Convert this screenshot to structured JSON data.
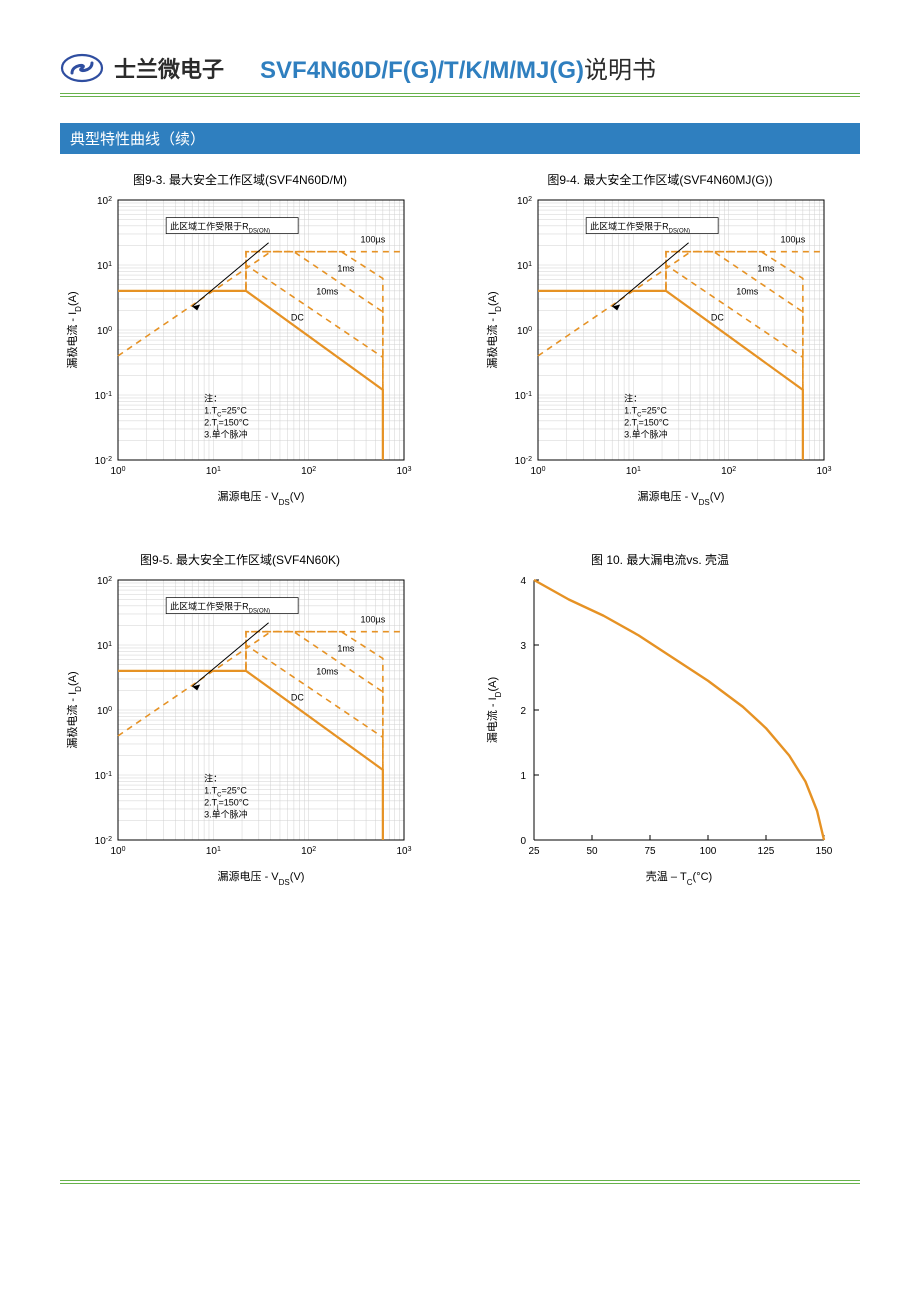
{
  "header": {
    "brand": "士兰微电子",
    "part_number": "SVF4N60D/F(G)/T/K/M/MJ(G)",
    "part_suffix": "说明书",
    "logo_stroke": "#2f4ea0",
    "logo_fill": "#ffffff"
  },
  "section_title": "典型特性曲线（续）",
  "colors": {
    "axis": "#000000",
    "grid": "#d0d0d0",
    "curve": "#e69224",
    "background": "#ffffff",
    "text": "#000000",
    "header_blue": "#2f7fbf",
    "rule_green": "#67b24b"
  },
  "soa_common": {
    "type": "line-loglog",
    "xlabel": "漏源电压 - V",
    "xlabel_sub": "DS",
    "xlabel_unit": "(V)",
    "ylabel": "漏极电流 - I",
    "ylabel_sub": "D",
    "ylabel_unit": "(A)",
    "xlim": [
      1,
      1000
    ],
    "ylim": [
      0.01,
      100
    ],
    "xtick_exp": [
      0,
      1,
      2,
      3
    ],
    "ytick_exp": [
      -2,
      -1,
      0,
      1,
      2
    ],
    "note_lines": [
      "注：",
      "1.T",
      "2.T",
      "3.单个脉冲"
    ],
    "note_sub1": "C",
    "note_val1": "=25°C",
    "note_sub2": "j",
    "note_val2": "=150°C",
    "rdson_label_pre": "此区域工作受限于R",
    "rdson_label_sub": "DS(ON)",
    "pulse_labels": [
      "100µs",
      "1ms",
      "10ms",
      "DC"
    ],
    "line_width_solid": 2.2,
    "line_width_dash": 1.6,
    "dash": "6,5",
    "rdson_line": [
      [
        1,
        0.4
      ],
      [
        40,
        16
      ],
      [
        1000,
        16
      ]
    ],
    "dc": [
      [
        1,
        4
      ],
      [
        22,
        4
      ],
      [
        600,
        0.12
      ],
      [
        600,
        0.01
      ]
    ],
    "p10ms": [
      [
        1.6,
        4
      ],
      [
        22,
        4
      ],
      [
        22,
        10
      ],
      [
        600,
        0.38
      ],
      [
        600,
        0.01
      ]
    ],
    "p1ms": [
      [
        4.5,
        4
      ],
      [
        22,
        4
      ],
      [
        22,
        16
      ],
      [
        70,
        16
      ],
      [
        600,
        1.9
      ],
      [
        600,
        0.01
      ]
    ],
    "p100us": [
      [
        14,
        4
      ],
      [
        22,
        4
      ],
      [
        22,
        16
      ],
      [
        220,
        16
      ],
      [
        600,
        6.2
      ],
      [
        600,
        0.01
      ]
    ],
    "arrow_from": [
      38,
      22
    ],
    "arrow_to": [
      6,
      2.3
    ]
  },
  "soa_charts": [
    {
      "title": "图9-3. 最大安全工作区域(SVF4N60D/M)"
    },
    {
      "title": "图9-4. 最大安全工作区域(SVF4N60MJ(G))"
    },
    {
      "title": "图9-5. 最大安全工作区域(SVF4N60K)"
    }
  ],
  "id_tc_chart": {
    "type": "line",
    "title": "图 10. 最大漏电流vs. 壳温",
    "xlabel": "壳温 – T",
    "xlabel_sub": "C",
    "xlabel_unit": "(°C)",
    "ylabel": "漏电流 - I",
    "ylabel_sub": "D",
    "ylabel_unit": "(A)",
    "xlim": [
      25,
      150
    ],
    "ylim": [
      0,
      4
    ],
    "xticks": [
      25,
      50,
      75,
      100,
      125,
      150
    ],
    "yticks": [
      0,
      1,
      2,
      3,
      4
    ],
    "data": [
      [
        25,
        4.0
      ],
      [
        40,
        3.7
      ],
      [
        55,
        3.45
      ],
      [
        70,
        3.15
      ],
      [
        85,
        2.8
      ],
      [
        100,
        2.45
      ],
      [
        115,
        2.05
      ],
      [
        125,
        1.72
      ],
      [
        135,
        1.3
      ],
      [
        142,
        0.9
      ],
      [
        147,
        0.45
      ],
      [
        150,
        0.0
      ]
    ],
    "line_width": 2.4
  },
  "title_fontsize": 12,
  "tick_fontsize": 10,
  "label_fontsize": 11,
  "note_fontsize": 9
}
